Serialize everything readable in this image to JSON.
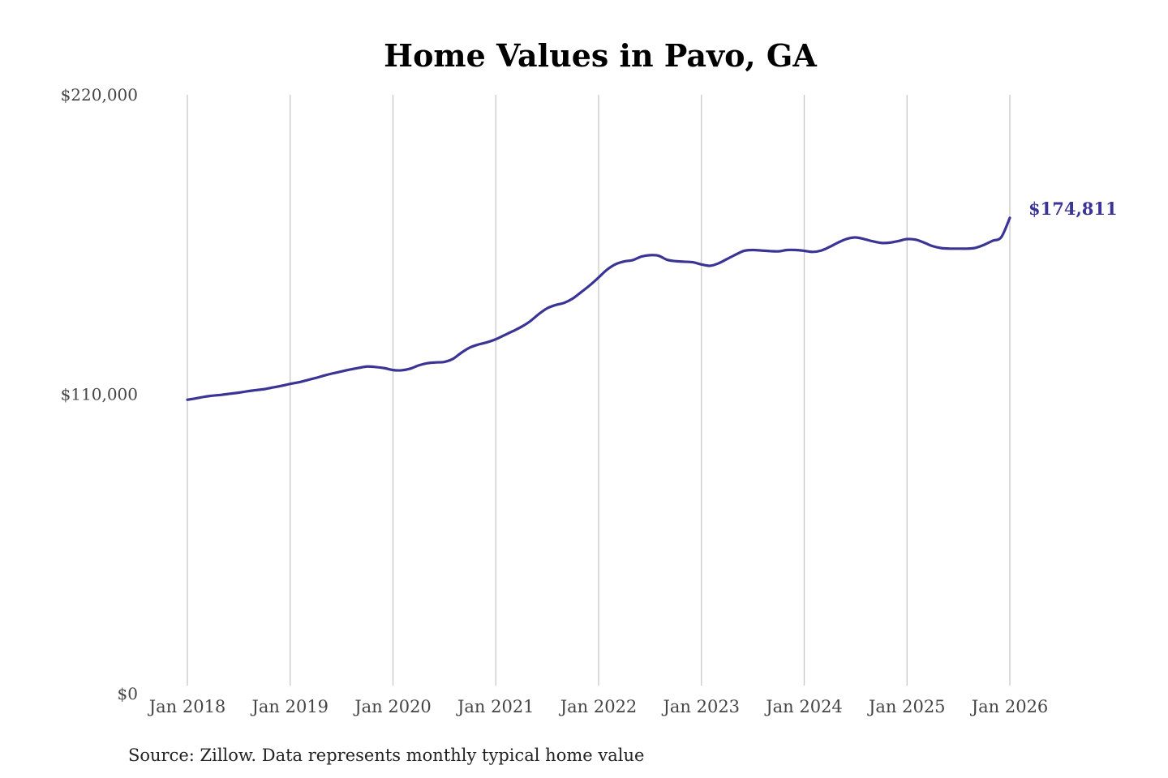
{
  "chart_data": {
    "type": "line",
    "title": "Home Values in Pavo, GA",
    "xlabel": "",
    "ylabel": "",
    "ylim": [
      0,
      220000
    ],
    "y_ticks": [
      "$0",
      "$110,000",
      "$220,000"
    ],
    "y_tick_values": [
      0,
      110000,
      220000
    ],
    "x_ticks": [
      "Jan 2018",
      "Jan 2019",
      "Jan 2020",
      "Jan 2021",
      "Jan 2022",
      "Jan 2023",
      "Jan 2024",
      "Jan 2025",
      "Jan 2026"
    ],
    "x_tick_years": [
      2018,
      2019,
      2020,
      2021,
      2022,
      2023,
      2024,
      2025,
      2026
    ],
    "grid": "vertical",
    "line_color": "#3a3494",
    "end_label": "$174,811",
    "series": [
      {
        "x": [
          "2018-01",
          "2018-02",
          "2018-03",
          "2018-04",
          "2018-05",
          "2018-06",
          "2018-07",
          "2018-08",
          "2018-09",
          "2018-10",
          "2018-11",
          "2018-12",
          "2019-01",
          "2019-02",
          "2019-03",
          "2019-04",
          "2019-05",
          "2019-06",
          "2019-07",
          "2019-08",
          "2019-09",
          "2019-10",
          "2019-11",
          "2019-12",
          "2020-01",
          "2020-02",
          "2020-03",
          "2020-04",
          "2020-05",
          "2020-06",
          "2020-07",
          "2020-08",
          "2020-09",
          "2020-10",
          "2020-11",
          "2020-12",
          "2021-01",
          "2021-02",
          "2021-03",
          "2021-04",
          "2021-05",
          "2021-06",
          "2021-07",
          "2021-08",
          "2021-09",
          "2021-10",
          "2021-11",
          "2021-12",
          "2022-01",
          "2022-02",
          "2022-03",
          "2022-04",
          "2022-05",
          "2022-06",
          "2022-07",
          "2022-08",
          "2022-09",
          "2022-10",
          "2022-11",
          "2022-12",
          "2023-01",
          "2023-02",
          "2023-03",
          "2023-04",
          "2023-05",
          "2023-06",
          "2023-07",
          "2023-08",
          "2023-09",
          "2023-10",
          "2023-11",
          "2023-12",
          "2024-01",
          "2024-02",
          "2024-03",
          "2024-04",
          "2024-05",
          "2024-06",
          "2024-07",
          "2024-08",
          "2024-09",
          "2024-10",
          "2024-11",
          "2024-12",
          "2025-01",
          "2025-02",
          "2025-03",
          "2025-04",
          "2025-05",
          "2025-06",
          "2025-07",
          "2025-08",
          "2025-09",
          "2025-10",
          "2025-11",
          "2025-12",
          "2026-01"
        ],
        "values": [
          108000,
          108500,
          109100,
          109500,
          109800,
          110200,
          110600,
          111100,
          111500,
          111900,
          112500,
          113100,
          113800,
          114400,
          115200,
          116000,
          116900,
          117700,
          118400,
          119100,
          119700,
          120200,
          120000,
          119600,
          118900,
          118800,
          119400,
          120600,
          121400,
          121700,
          121900,
          123000,
          125300,
          127200,
          128300,
          129100,
          130200,
          131700,
          133200,
          134800,
          136800,
          139400,
          141600,
          142800,
          143600,
          145200,
          147600,
          150100,
          152900,
          155800,
          157800,
          158800,
          159300,
          160600,
          161100,
          160900,
          159400,
          158900,
          158700,
          158500,
          157700,
          157200,
          158100,
          159700,
          161300,
          162700,
          163000,
          162800,
          162600,
          162500,
          163000,
          163000,
          162700,
          162300,
          162800,
          164200,
          165800,
          167100,
          167600,
          167000,
          166200,
          165600,
          165700,
          166300,
          167000,
          166800,
          165700,
          164400,
          163700,
          163500,
          163500,
          163500,
          163800,
          164900,
          166400,
          167700,
          174811
        ]
      }
    ]
  },
  "source_text": "Source: Zillow. Data represents monthly typical home value"
}
